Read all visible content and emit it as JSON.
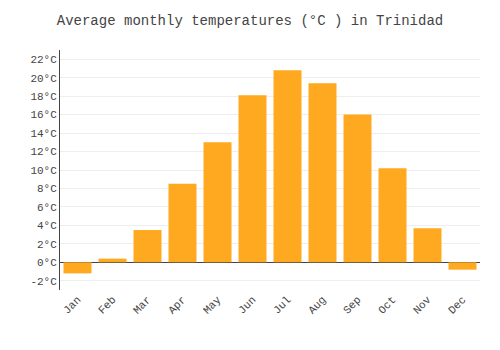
{
  "chart_data": {
    "type": "bar",
    "title": "Average monthly temperatures (°C ) in Trinidad",
    "categories": [
      "Jan",
      "Feb",
      "Mar",
      "Apr",
      "May",
      "Jun",
      "Jul",
      "Aug",
      "Sep",
      "Oct",
      "Nov",
      "Dec"
    ],
    "values": [
      -1.2,
      0.4,
      3.5,
      8.5,
      13.0,
      18.1,
      20.8,
      19.4,
      16.0,
      10.2,
      3.7,
      -0.8
    ],
    "color": "#FFA920",
    "ylim": [
      -3,
      23
    ],
    "yticks": [
      {
        "value": -2,
        "label": "-2°C"
      },
      {
        "value": 0,
        "label": "0°C"
      },
      {
        "value": 2,
        "label": "2°C"
      },
      {
        "value": 4,
        "label": "4°C"
      },
      {
        "value": 6,
        "label": "6°C"
      },
      {
        "value": 8,
        "label": "8°C"
      },
      {
        "value": 10,
        "label": "10°C"
      },
      {
        "value": 12,
        "label": "12°C"
      },
      {
        "value": 14,
        "label": "14°C"
      },
      {
        "value": 16,
        "label": "16°C"
      },
      {
        "value": 18,
        "label": "18°C"
      },
      {
        "value": 20,
        "label": "20°C"
      },
      {
        "value": 22,
        "label": "22°C"
      }
    ],
    "grid": true
  }
}
